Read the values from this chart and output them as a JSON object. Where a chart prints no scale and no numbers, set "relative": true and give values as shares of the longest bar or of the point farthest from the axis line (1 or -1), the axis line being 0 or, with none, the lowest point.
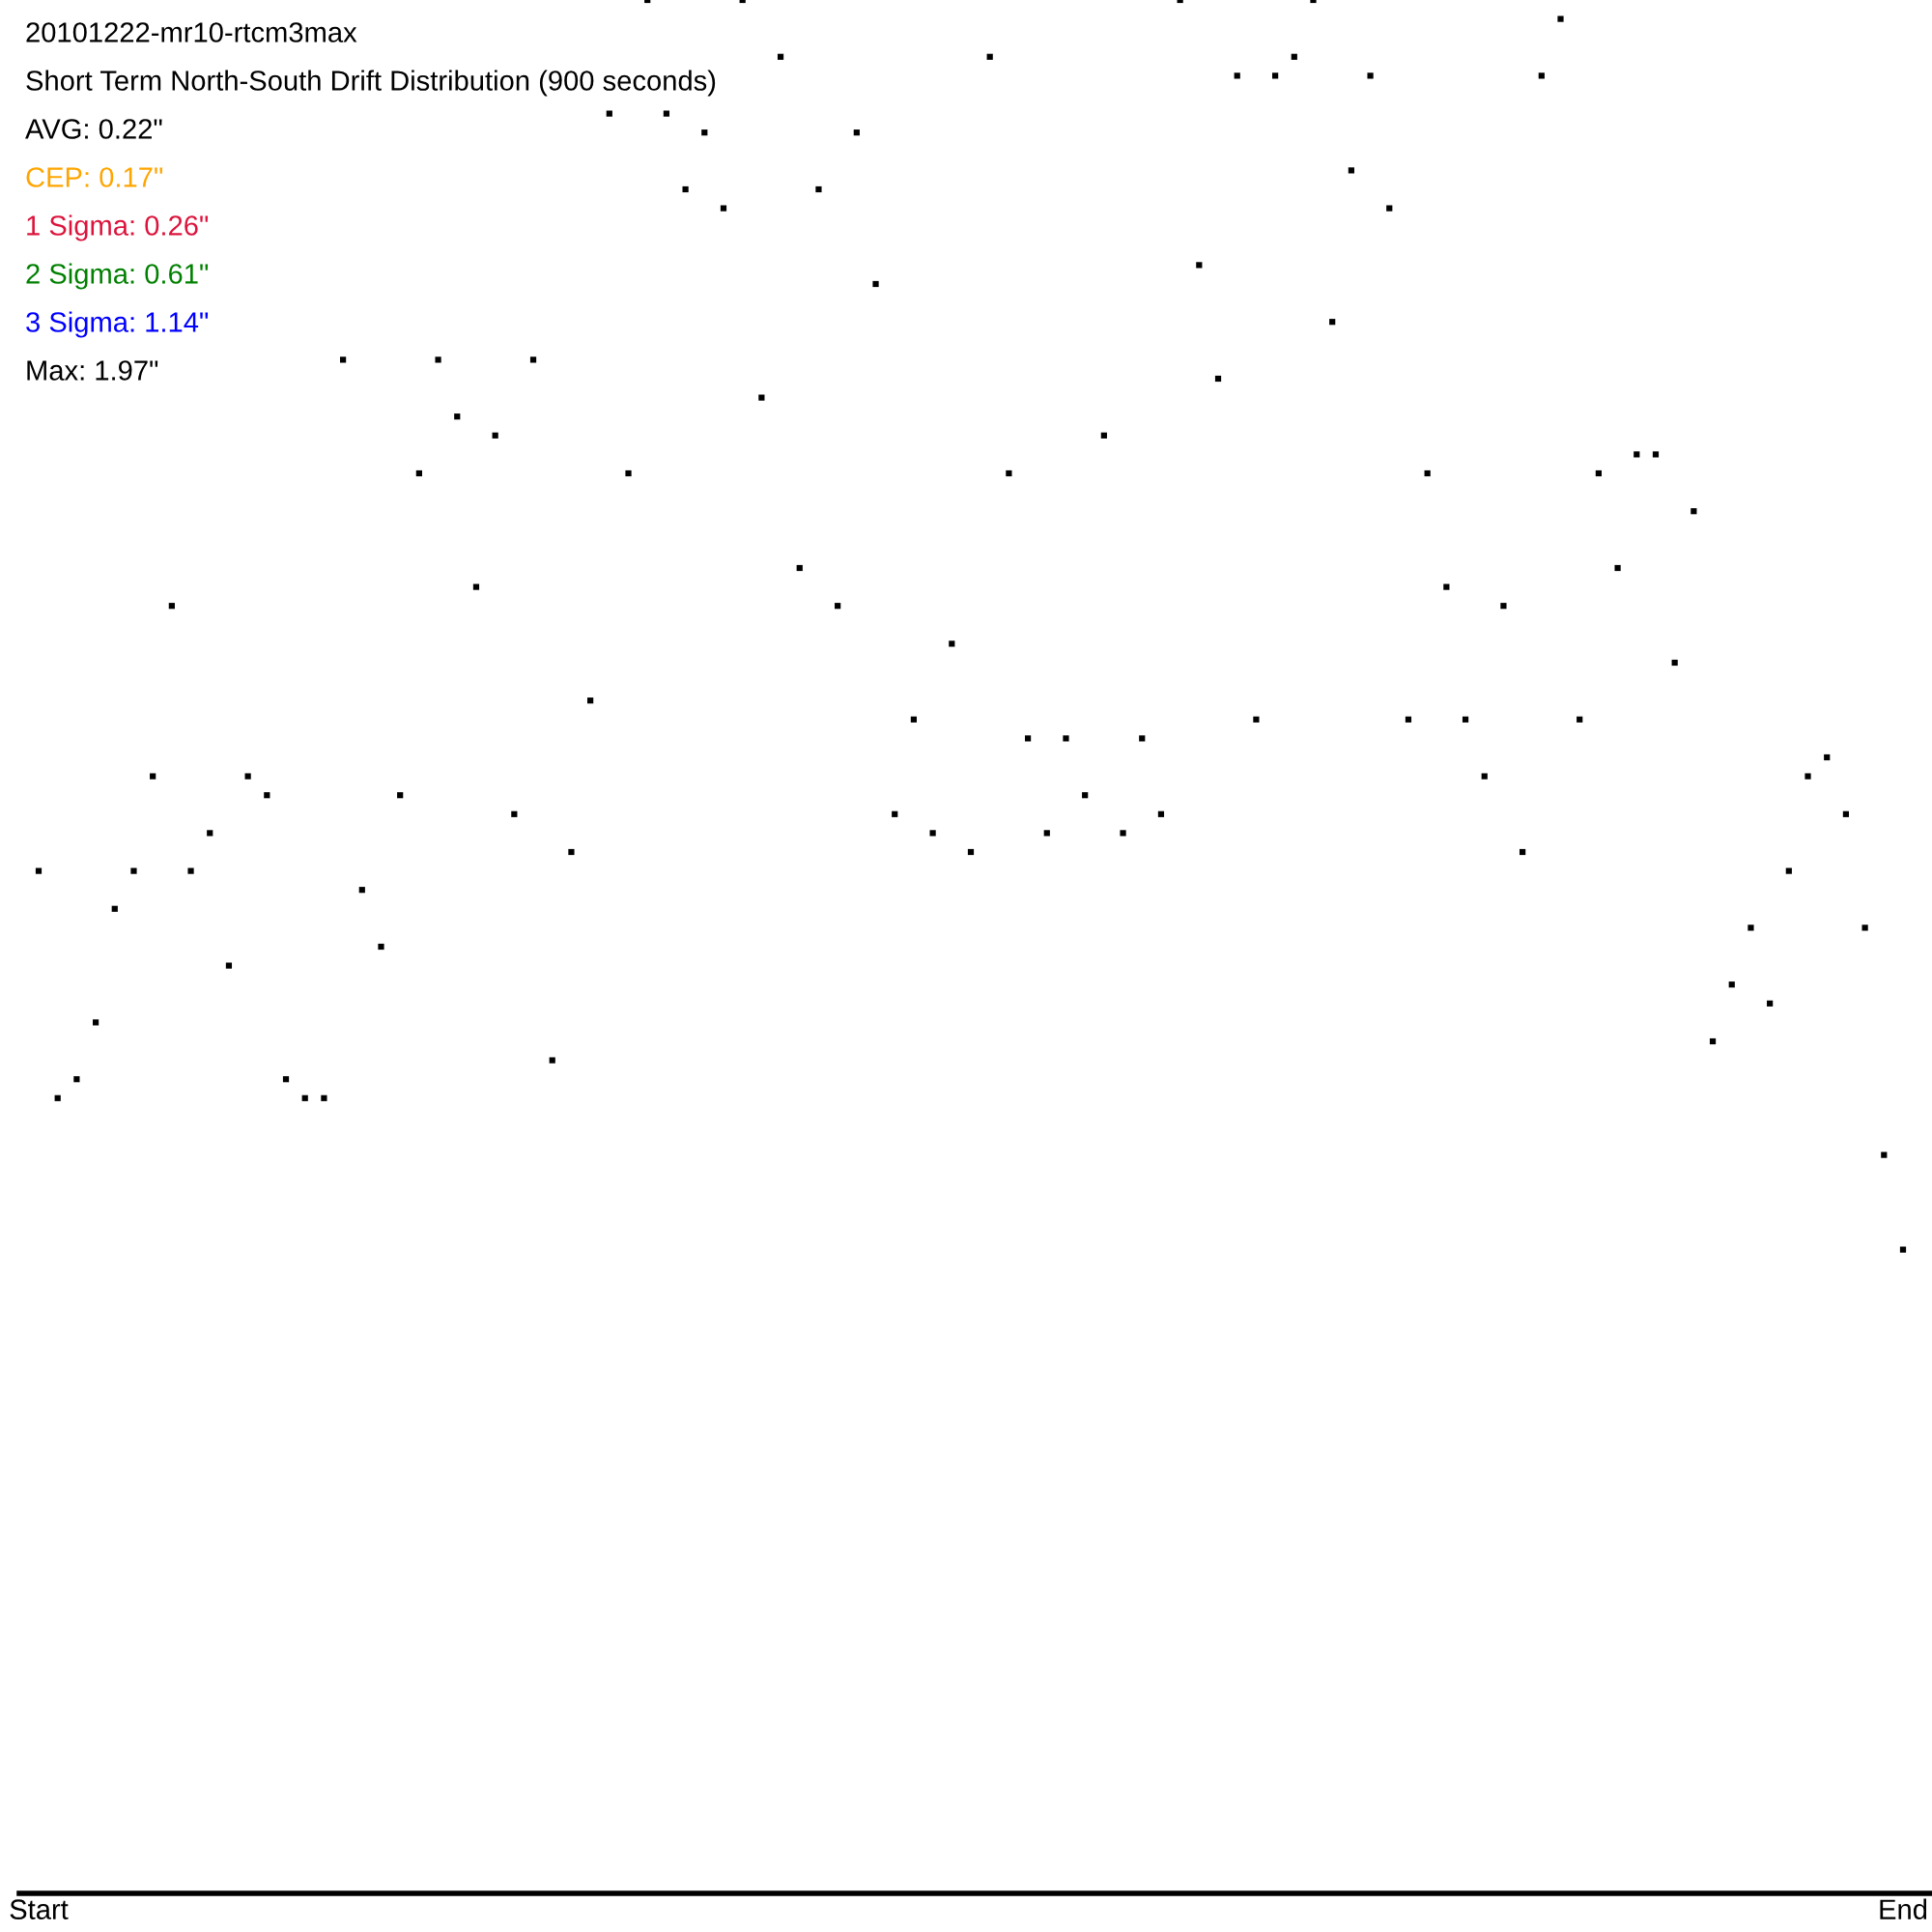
{
  "chart_data": {
    "type": "scatter",
    "title": "20101222-mr10-rtcm3max",
    "subtitle": "Short Term North-South Drift Distribution (900 seconds)",
    "annotations": [
      "AVG: 0.22\"",
      "CEP: 0.17\"",
      "1 Sigma: 0.26\"",
      "2 Sigma: 0.61\"",
      "3 Sigma: 1.14\"",
      "Max: 1.97\""
    ],
    "relative": true,
    "marker": "square",
    "categories": [
      "Start",
      null,
      null,
      null,
      null,
      null,
      null,
      null,
      null,
      null,
      null,
      null,
      null,
      null,
      null,
      null,
      null,
      null,
      null,
      null,
      null,
      null,
      null,
      null,
      null,
      null,
      null,
      null,
      null,
      null,
      null,
      null,
      null,
      null,
      null,
      null,
      null,
      null,
      null,
      null,
      null,
      null,
      null,
      null,
      null,
      null,
      null,
      null,
      null,
      null,
      null,
      null,
      null,
      null,
      null,
      null,
      null,
      null,
      null,
      null,
      null,
      null,
      null,
      null,
      null,
      null,
      null,
      null,
      null,
      null,
      null,
      null,
      null,
      null,
      null,
      null,
      null,
      null,
      null,
      null,
      null,
      null,
      null,
      null,
      null,
      null,
      null,
      null,
      null,
      null,
      null,
      null,
      null,
      null,
      null,
      null,
      null,
      null,
      "End"
    ],
    "series": [
      {
        "color": "#000000",
        "values": [
          0.54,
          0.42,
          0.43,
          0.46,
          0.52,
          0.54,
          0.59,
          0.68,
          0.54,
          0.56,
          0.49,
          0.59,
          0.58,
          0.43,
          0.42,
          0.42,
          0.81,
          0.53,
          0.5,
          0.58,
          0.75,
          0.81,
          0.78,
          0.69,
          0.77,
          0.57,
          0.81,
          0.44,
          0.55,
          0.63,
          0.94,
          0.75,
          1.0,
          0.94,
          0.9,
          0.93,
          0.89,
          1.0,
          0.79,
          0.97,
          0.7,
          0.9,
          0.68,
          0.93,
          0.85,
          0.57,
          0.62,
          0.56,
          0.66,
          0.55,
          0.97,
          0.75,
          0.61,
          0.56,
          0.61,
          0.58,
          0.77,
          0.56,
          0.61,
          0.57,
          1.0,
          0.86,
          0.8,
          0.96,
          0.62,
          0.96,
          0.97,
          1.0,
          0.83,
          0.91,
          0.96,
          0.89,
          0.62,
          0.75,
          0.69,
          0.62,
          0.59,
          0.68,
          0.55,
          0.96,
          0.99,
          0.62,
          0.75,
          0.7,
          0.76,
          0.76,
          0.65,
          0.73,
          0.45,
          0.48,
          0.51,
          0.47,
          0.54,
          0.59,
          0.6,
          0.57,
          0.51,
          0.39,
          0.34
        ]
      }
    ]
  }
}
